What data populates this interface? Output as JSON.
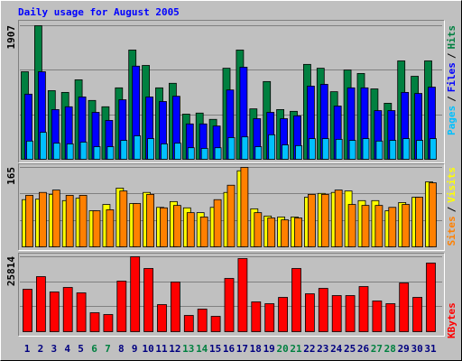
{
  "title": "Daily usage for August 2005",
  "legend_separator": "/",
  "chart_data": [
    {
      "type": "bar",
      "ylim": [
        0,
        1907
      ],
      "yticks": [
        1907
      ],
      "gridlines": [
        636,
        1271
      ],
      "series": [
        {
          "name": "Hits",
          "color": "#008040",
          "values": [
            1250,
            1907,
            980,
            955,
            1135,
            840,
            750,
            1020,
            1560,
            1340,
            1020,
            1085,
            645,
            660,
            570,
            1300,
            1560,
            720,
            1110,
            710,
            685,
            1355,
            1300,
            965,
            1275,
            1225,
            1005,
            800,
            1405,
            1185,
            1405
          ]
        },
        {
          "name": "Files",
          "color": "#0000ff",
          "values": [
            930,
            1250,
            710,
            750,
            890,
            670,
            555,
            850,
            1330,
            890,
            825,
            900,
            505,
            505,
            475,
            990,
            1315,
            580,
            670,
            580,
            620,
            1045,
            1070,
            760,
            1020,
            1020,
            695,
            695,
            955,
            940,
            1030
          ]
        },
        {
          "name": "Pages",
          "color": "#00c0ff",
          "values": [
            260,
            385,
            230,
            220,
            245,
            180,
            180,
            270,
            335,
            295,
            220,
            230,
            165,
            155,
            165,
            310,
            320,
            180,
            350,
            205,
            195,
            295,
            295,
            285,
            270,
            295,
            260,
            270,
            295,
            270,
            295
          ]
        }
      ]
    },
    {
      "type": "bar",
      "ylim": [
        0,
        165
      ],
      "yticks": [
        165
      ],
      "gridlines": [
        55,
        110
      ],
      "series": [
        {
          "name": "Visits",
          "color": "#ffff00",
          "values": [
            98,
            99,
            109,
            96,
            101,
            75,
            88,
            122,
            90,
            113,
            82,
            94,
            81,
            71,
            82,
            113,
            158,
            79,
            64,
            62,
            62,
            103,
            111,
            113,
            116,
            96,
            96,
            75,
            92,
            103,
            135
          ]
        },
        {
          "name": "Sites",
          "color": "#ff8000",
          "values": [
            107,
            113,
            118,
            107,
            107,
            75,
            77,
            116,
            90,
            109,
            81,
            86,
            71,
            62,
            98,
            128,
            165,
            71,
            60,
            56,
            60,
            109,
            109,
            118,
            88,
            86,
            86,
            82,
            88,
            103,
            133
          ]
        }
      ]
    },
    {
      "type": "bar",
      "ylim": [
        0,
        25814
      ],
      "yticks": [
        25814
      ],
      "gridlines": [
        8605,
        17209
      ],
      "categories": [
        "1",
        "2",
        "3",
        "4",
        "5",
        "6",
        "7",
        "8",
        "9",
        "10",
        "11",
        "12",
        "13",
        "14",
        "15",
        "16",
        "17",
        "18",
        "19",
        "20",
        "21",
        "22",
        "23",
        "24",
        "25",
        "26",
        "27",
        "28",
        "29",
        "30",
        "31"
      ],
      "category_colors": [
        "#000080",
        "#000080",
        "#000080",
        "#000080",
        "#000080",
        "#008040",
        "#008040",
        "#000080",
        "#000080",
        "#000080",
        "#000080",
        "#000080",
        "#008040",
        "#008040",
        "#000080",
        "#000080",
        "#000080",
        "#000080",
        "#000080",
        "#008040",
        "#008040",
        "#000080",
        "#000080",
        "#000080",
        "#000080",
        "#000080",
        "#008040",
        "#008040",
        "#000080",
        "#000080",
        "#000080"
      ],
      "series": [
        {
          "name": "KBytes",
          "color": "#ff0000",
          "values": [
            14617,
            18972,
            13684,
            15240,
            13373,
            6531,
            5909,
            17417,
            25814,
            21771,
            9330,
            17105,
            5598,
            7775,
            5287,
            18350,
            25192,
            10263,
            9641,
            11818,
            21771,
            13062,
            14928,
            12440,
            12440,
            15550,
            10574,
            9641,
            16795,
            11818,
            23636
          ]
        }
      ]
    }
  ]
}
